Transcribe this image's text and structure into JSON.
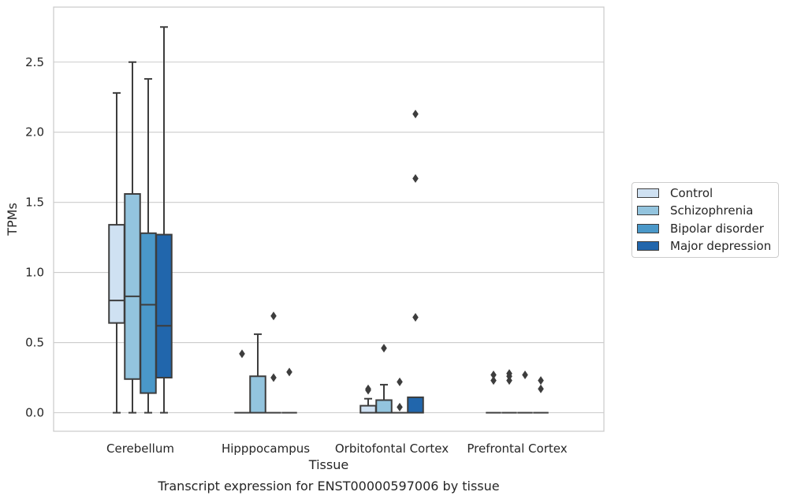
{
  "chart_data": {
    "type": "box",
    "title": "Transcript expression for ENST00000597006 by tissue",
    "xlabel": "Tissue",
    "ylabel": "TPMs",
    "ylim": [
      -0.13,
      2.9
    ],
    "yticks": [
      "0.0",
      "0.5",
      "1.0",
      "1.5",
      "2.0",
      "2.5"
    ],
    "grid": "horizontal",
    "legend_position": "right",
    "categories": [
      "Cerebellum",
      "Hipppocampus",
      "Orbitofontal Cortex",
      "Prefrontal Cortex"
    ],
    "series": [
      {
        "name": "Control",
        "color": "#cfe1f2",
        "boxes": [
          {
            "min": 0.0,
            "q1": 0.64,
            "median": 0.8,
            "q3": 1.34,
            "max": 2.28,
            "outliers": []
          },
          {
            "min": 0.0,
            "q1": 0.0,
            "median": 0.0,
            "q3": 0.0,
            "max": 0.0,
            "outliers": [
              0.42
            ]
          },
          {
            "min": 0.0,
            "q1": 0.0,
            "median": 0.0,
            "q3": 0.05,
            "max": 0.1,
            "outliers": [
              0.16,
              0.17
            ]
          },
          {
            "min": 0.0,
            "q1": 0.0,
            "median": 0.0,
            "q3": 0.0,
            "max": 0.0,
            "outliers": [
              0.23,
              0.27
            ]
          }
        ]
      },
      {
        "name": "Schizophrenia",
        "color": "#93c4de",
        "boxes": [
          {
            "min": 0.0,
            "q1": 0.24,
            "median": 0.83,
            "q3": 1.56,
            "max": 2.5,
            "outliers": []
          },
          {
            "min": 0.0,
            "q1": 0.0,
            "median": 0.0,
            "q3": 0.26,
            "max": 0.56,
            "outliers": []
          },
          {
            "min": 0.0,
            "q1": 0.0,
            "median": 0.0,
            "q3": 0.09,
            "max": 0.2,
            "outliers": [
              0.46
            ]
          },
          {
            "min": 0.0,
            "q1": 0.0,
            "median": 0.0,
            "q3": 0.0,
            "max": 0.0,
            "outliers": [
              0.23,
              0.26,
              0.28
            ]
          }
        ]
      },
      {
        "name": "Bipolar disorder",
        "color": "#4a98c9",
        "boxes": [
          {
            "min": 0.0,
            "q1": 0.14,
            "median": 0.77,
            "q3": 1.28,
            "max": 2.38,
            "outliers": []
          },
          {
            "min": 0.0,
            "q1": 0.0,
            "median": 0.0,
            "q3": 0.0,
            "max": 0.0,
            "outliers": [
              0.25,
              0.69
            ]
          },
          {
            "min": 0.0,
            "q1": 0.0,
            "median": 0.0,
            "q3": 0.0,
            "max": 0.0,
            "outliers": [
              0.04,
              0.22
            ]
          },
          {
            "min": 0.0,
            "q1": 0.0,
            "median": 0.0,
            "q3": 0.0,
            "max": 0.0,
            "outliers": [
              0.27
            ]
          }
        ]
      },
      {
        "name": "Major depression",
        "color": "#2166ac",
        "boxes": [
          {
            "min": 0.0,
            "q1": 0.25,
            "median": 0.62,
            "q3": 1.27,
            "max": 2.75,
            "outliers": []
          },
          {
            "min": 0.0,
            "q1": 0.0,
            "median": 0.0,
            "q3": 0.0,
            "max": 0.0,
            "outliers": [
              0.29
            ]
          },
          {
            "min": 0.0,
            "q1": 0.0,
            "median": 0.0,
            "q3": 0.11,
            "max": 0.11,
            "outliers": [
              0.68,
              1.67,
              2.13
            ]
          },
          {
            "min": 0.0,
            "q1": 0.0,
            "median": 0.0,
            "q3": 0.0,
            "max": 0.0,
            "outliers": [
              0.17,
              0.23
            ]
          }
        ]
      }
    ]
  }
}
